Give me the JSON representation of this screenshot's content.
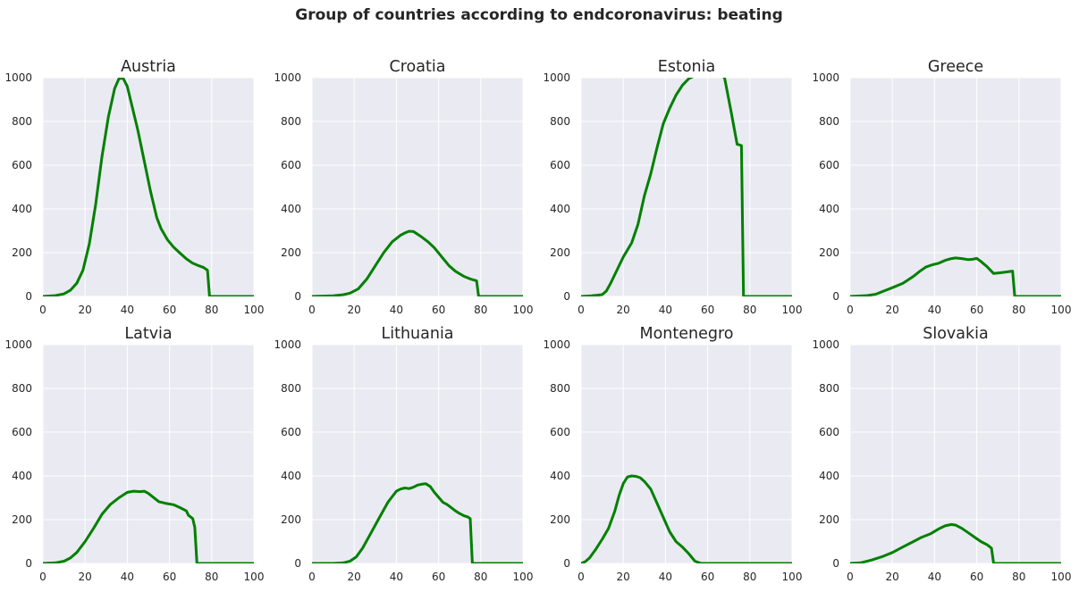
{
  "figure": {
    "title": "Group of countries according to endcoronavirus: beating"
  },
  "chart_data": [
    {
      "type": "line",
      "title": "Austria",
      "xlim": [
        0,
        100
      ],
      "ylim": [
        0,
        1000
      ],
      "xticks": [
        0,
        20,
        40,
        60,
        80,
        100
      ],
      "yticks": [
        0,
        200,
        400,
        600,
        800,
        1000
      ],
      "grid": true,
      "line_color": "#008000",
      "x": [
        0,
        6,
        10,
        13,
        16,
        19,
        22,
        25,
        28,
        31,
        34,
        36,
        38,
        40,
        42,
        45,
        48,
        51,
        54,
        56,
        59,
        62,
        65,
        68,
        71,
        74,
        76,
        78,
        79,
        100
      ],
      "y": [
        0,
        4,
        12,
        28,
        60,
        120,
        240,
        420,
        640,
        820,
        950,
        995,
        998,
        960,
        880,
        760,
        620,
        480,
        360,
        310,
        260,
        225,
        198,
        172,
        152,
        140,
        133,
        120,
        0,
        0
      ]
    },
    {
      "type": "line",
      "title": "Croatia",
      "xlim": [
        0,
        100
      ],
      "ylim": [
        0,
        1000
      ],
      "xticks": [
        0,
        20,
        40,
        60,
        80,
        100
      ],
      "yticks": [
        0,
        200,
        400,
        600,
        800,
        1000
      ],
      "grid": true,
      "line_color": "#008000",
      "x": [
        0,
        10,
        15,
        18,
        22,
        26,
        30,
        34,
        38,
        42,
        44,
        46,
        48,
        50,
        52,
        55,
        58,
        62,
        65,
        68,
        72,
        75,
        78,
        79,
        100
      ],
      "y": [
        0,
        3,
        8,
        15,
        35,
        80,
        140,
        200,
        250,
        280,
        290,
        298,
        297,
        285,
        272,
        250,
        222,
        175,
        140,
        115,
        92,
        80,
        72,
        0,
        0
      ]
    },
    {
      "type": "line",
      "title": "Estonia",
      "xlim": [
        0,
        100
      ],
      "ylim": [
        0,
        1000
      ],
      "xticks": [
        0,
        20,
        40,
        60,
        80,
        100
      ],
      "yticks": [
        0,
        200,
        400,
        600,
        800,
        1000
      ],
      "grid": true,
      "line_color": "#008000",
      "x": [
        0,
        5,
        10,
        12,
        14,
        17,
        20,
        24,
        27,
        30,
        33,
        36,
        39,
        42,
        45,
        48,
        51,
        54,
        56,
        65,
        68,
        71,
        74,
        75,
        76,
        77,
        100
      ],
      "y": [
        0,
        3,
        8,
        25,
        60,
        120,
        180,
        245,
        330,
        460,
        560,
        680,
        790,
        860,
        920,
        965,
        995,
        1010,
        1020,
        1020,
        1000,
        850,
        695,
        693,
        690,
        0,
        0
      ]
    },
    {
      "type": "line",
      "title": "Greece",
      "xlim": [
        0,
        100
      ],
      "ylim": [
        0,
        1000
      ],
      "xticks": [
        0,
        20,
        40,
        60,
        80,
        100
      ],
      "yticks": [
        0,
        200,
        400,
        600,
        800,
        1000
      ],
      "grid": true,
      "line_color": "#008000",
      "x": [
        0,
        8,
        12,
        16,
        20,
        25,
        30,
        33,
        36,
        39,
        42,
        45,
        48,
        50,
        53,
        56,
        58,
        60,
        62,
        65,
        68,
        71,
        74,
        77,
        78,
        100
      ],
      "y": [
        0,
        4,
        10,
        25,
        40,
        60,
        92,
        115,
        135,
        145,
        152,
        165,
        173,
        176,
        173,
        168,
        170,
        174,
        160,
        135,
        105,
        108,
        112,
        116,
        0,
        0
      ]
    },
    {
      "type": "line",
      "title": "Latvia",
      "xlim": [
        0,
        100
      ],
      "ylim": [
        0,
        1000
      ],
      "xticks": [
        0,
        20,
        40,
        60,
        80,
        100
      ],
      "yticks": [
        0,
        200,
        400,
        600,
        800,
        1000
      ],
      "grid": true,
      "line_color": "#008000",
      "x": [
        0,
        6,
        10,
        13,
        16,
        20,
        24,
        28,
        32,
        36,
        40,
        43,
        46,
        48,
        50,
        52,
        55,
        58,
        62,
        65,
        68,
        69,
        71,
        72,
        73,
        100
      ],
      "y": [
        0,
        3,
        10,
        25,
        50,
        100,
        160,
        225,
        270,
        300,
        325,
        330,
        328,
        330,
        320,
        305,
        282,
        275,
        268,
        255,
        240,
        220,
        205,
        165,
        0,
        0
      ]
    },
    {
      "type": "line",
      "title": "Lithuania",
      "xlim": [
        0,
        100
      ],
      "ylim": [
        0,
        1000
      ],
      "xticks": [
        0,
        20,
        40,
        60,
        80,
        100
      ],
      "yticks": [
        0,
        200,
        400,
        600,
        800,
        1000
      ],
      "grid": true,
      "line_color": "#008000",
      "x": [
        0,
        10,
        15,
        18,
        21,
        24,
        28,
        32,
        36,
        40,
        42,
        44,
        46,
        48,
        50,
        52,
        54,
        56,
        58,
        62,
        64,
        66,
        68,
        70,
        72,
        74,
        75,
        76,
        100
      ],
      "y": [
        0,
        0,
        3,
        10,
        30,
        70,
        140,
        210,
        280,
        330,
        340,
        345,
        342,
        348,
        358,
        362,
        364,
        352,
        325,
        280,
        270,
        255,
        240,
        228,
        218,
        212,
        205,
        0,
        0
      ]
    },
    {
      "type": "line",
      "title": "Montenegro",
      "xlim": [
        0,
        100
      ],
      "ylim": [
        0,
        1000
      ],
      "xticks": [
        0,
        20,
        40,
        60,
        80,
        100
      ],
      "yticks": [
        0,
        200,
        400,
        600,
        800,
        1000
      ],
      "grid": true,
      "line_color": "#008000",
      "x": [
        0,
        2,
        4,
        7,
        10,
        13,
        16,
        18,
        20,
        22,
        24,
        26,
        28,
        30,
        33,
        36,
        39,
        42,
        45,
        48,
        51,
        54,
        57,
        100
      ],
      "y": [
        0,
        8,
        25,
        65,
        110,
        160,
        240,
        310,
        365,
        395,
        400,
        398,
        392,
        375,
        340,
        275,
        210,
        145,
        100,
        75,
        45,
        10,
        0,
        0
      ]
    },
    {
      "type": "line",
      "title": "Slovakia",
      "xlim": [
        0,
        100
      ],
      "ylim": [
        0,
        1000
      ],
      "xticks": [
        0,
        20,
        40,
        60,
        80,
        100
      ],
      "yticks": [
        0,
        200,
        400,
        600,
        800,
        1000
      ],
      "grid": true,
      "line_color": "#008000",
      "x": [
        0,
        5,
        10,
        15,
        20,
        25,
        30,
        34,
        38,
        42,
        45,
        48,
        50,
        53,
        56,
        59,
        62,
        65,
        67,
        68,
        69,
        100
      ],
      "y": [
        0,
        3,
        15,
        30,
        50,
        75,
        100,
        120,
        135,
        158,
        172,
        178,
        175,
        160,
        140,
        120,
        100,
        85,
        70,
        0,
        0,
        0
      ]
    }
  ]
}
